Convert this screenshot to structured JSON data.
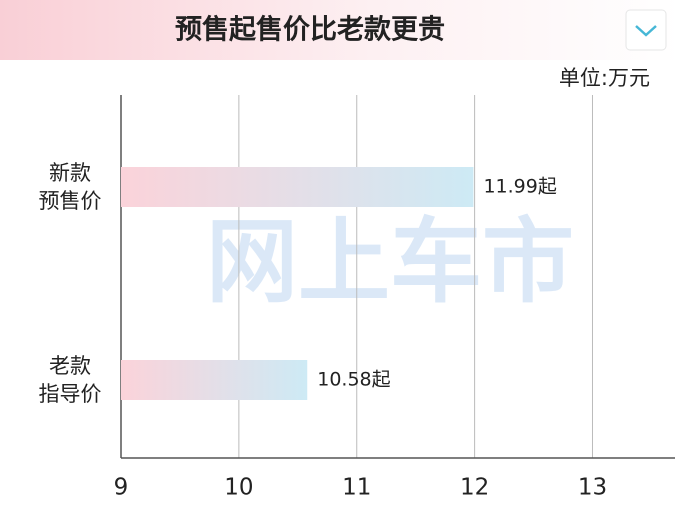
{
  "chart_data": {
    "type": "hbar",
    "title": "预售起售价比老款更贵",
    "unit": "单位:万元",
    "watermark": "网上车市",
    "categories": [
      "新款\n预售价",
      "老款\n指导价"
    ],
    "values": [
      11.99,
      10.58
    ],
    "value_labels": [
      "11.99起",
      "10.58起"
    ],
    "color_start": "#fbd3da",
    "color_end": "#cdeaf5",
    "xlim": [
      9,
      13.7
    ],
    "xticks": [
      9,
      10,
      11,
      12,
      13
    ],
    "grid": true
  }
}
